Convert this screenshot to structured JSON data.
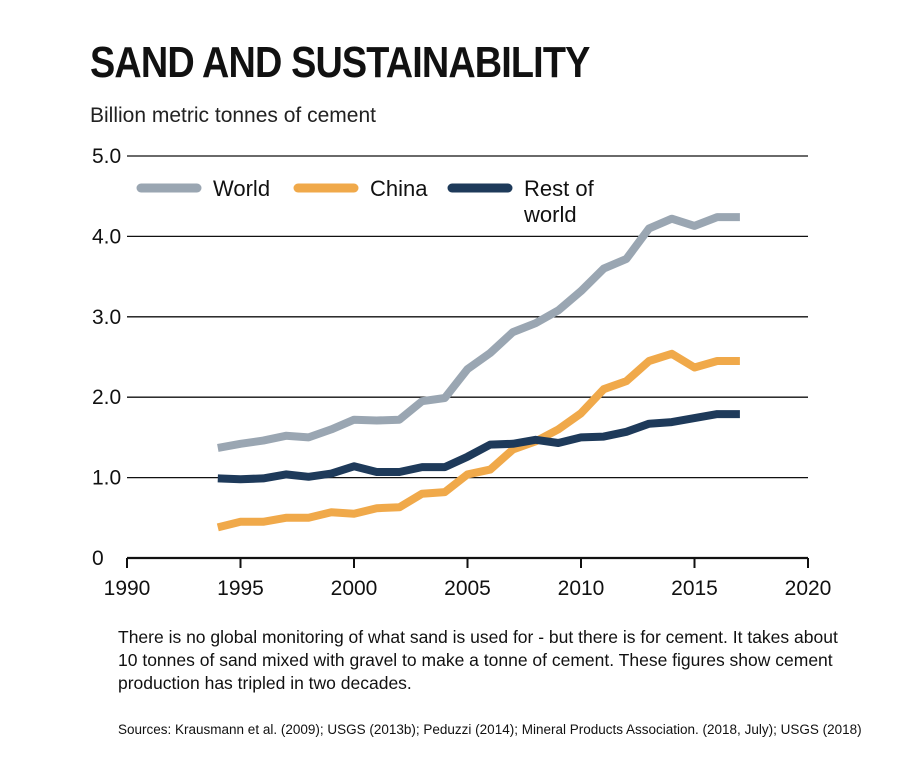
{
  "header": {
    "title": "SAND AND SUSTAINABILITY",
    "subtitle": "Billion metric tonnes of cement"
  },
  "caption": "There is no global monitoring of what sand is used for - but there is for cement. It takes about 10 tonnes of sand mixed with gravel to make a tonne of cement. These figures show cement production has tripled in two decades.",
  "sources": "Sources: Krausmann et al. (2009); USGS (2013b); Peduzzi (2014); Mineral Products Association. (2018, July); USGS (2018)",
  "chart_data": {
    "type": "line",
    "title": "SAND AND SUSTAINABILITY",
    "ylabel": "Billion metric tonnes of cement",
    "xlabel": "",
    "xlim": [
      1990,
      2020
    ],
    "ylim": [
      0,
      5
    ],
    "x_ticks": [
      1990,
      1995,
      2000,
      2005,
      2010,
      2015,
      2020
    ],
    "x_tick_labels": [
      "1990",
      "1995",
      "2000",
      "2005",
      "2010",
      "2015",
      "2020"
    ],
    "y_ticks": [
      0,
      1,
      2,
      3,
      4,
      5
    ],
    "y_tick_labels": [
      "0",
      "1.0",
      "2.0",
      "3.0",
      "4.0",
      "5.0"
    ],
    "grid": "horizontal",
    "legend": "top-left",
    "x": [
      1994,
      1995,
      1996,
      1997,
      1998,
      1999,
      2000,
      2001,
      2002,
      2003,
      2004,
      2005,
      2006,
      2007,
      2008,
      2009,
      2010,
      2011,
      2012,
      2013,
      2014,
      2015,
      2016,
      2017
    ],
    "series": [
      {
        "name": "World",
        "color": "#9aa6b2",
        "values": [
          1.37,
          1.42,
          1.46,
          1.52,
          1.5,
          1.6,
          1.72,
          1.71,
          1.72,
          1.95,
          1.99,
          2.35,
          2.55,
          2.81,
          2.92,
          3.08,
          3.32,
          3.6,
          3.72,
          4.1,
          4.22,
          4.13,
          4.24,
          4.24
        ]
      },
      {
        "name": "China",
        "color": "#f0a94a",
        "values": [
          0.38,
          0.45,
          0.45,
          0.5,
          0.5,
          0.57,
          0.55,
          0.62,
          0.63,
          0.8,
          0.82,
          1.04,
          1.1,
          1.35,
          1.45,
          1.6,
          1.8,
          2.1,
          2.2,
          2.45,
          2.54,
          2.37,
          2.45,
          2.45
        ]
      },
      {
        "name": "Rest of world",
        "color": "#1e3a5a",
        "values": [
          0.99,
          0.98,
          0.99,
          1.04,
          1.01,
          1.05,
          1.14,
          1.07,
          1.07,
          1.13,
          1.13,
          1.26,
          1.41,
          1.42,
          1.47,
          1.43,
          1.5,
          1.51,
          1.57,
          1.67,
          1.69,
          1.74,
          1.79,
          1.79
        ]
      }
    ]
  }
}
